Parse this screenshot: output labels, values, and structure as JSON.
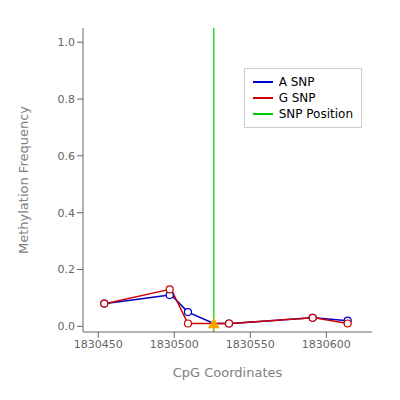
{
  "chart_data": {
    "type": "line",
    "xlabel": "CpG Coordinates",
    "ylabel": "Methylation Frequency",
    "xlim": [
      1830440,
      1830630
    ],
    "ylim": [
      -0.02,
      1.05
    ],
    "xticks": [
      1830450,
      1830500,
      1830550,
      1830600
    ],
    "yticks": [
      {
        "value": 0.0,
        "label": "0.0"
      },
      0.2,
      0.4,
      0.6,
      0.8,
      {
        "value": 1.0,
        "label": "1.0"
      }
    ],
    "grid": false,
    "legend": "upper right",
    "series": [
      {
        "name": "A SNP",
        "type": "line",
        "color": "#0000CC",
        "x": [
          1830454,
          1830455,
          1830497,
          1830498,
          1830509,
          1830526,
          1830536,
          1830537,
          1830591,
          1830592,
          1830614,
          1830615
        ],
        "values": [
          0.08,
          0.08,
          0.11,
          0.11,
          0.05,
          0.01,
          0.01,
          0.01,
          0.03,
          0.03,
          0.02,
          0.02
        ]
      },
      {
        "name": "G SNP",
        "type": "line",
        "color": "#CC0000",
        "x": [
          1830454,
          1830455,
          1830497,
          1830498,
          1830509,
          1830526,
          1830536,
          1830537,
          1830591,
          1830592,
          1830614,
          1830615
        ],
        "values": [
          0.08,
          0.08,
          0.13,
          0.13,
          0.01,
          0.01,
          0.01,
          0.01,
          0.03,
          0.03,
          0.01,
          0.01
        ]
      },
      {
        "name": "SNP Position",
        "type": "vline",
        "color": "#00CC00",
        "x": [
          1830526
        ]
      },
      {
        "type": "scatter",
        "marker": "circle",
        "color": "#0000CC",
        "x": [
          1830454,
          1830497,
          1830509,
          1830536,
          1830591,
          1830614
        ],
        "values": [
          0.08,
          0.11,
          0.05,
          0.01,
          0.03,
          0.02
        ]
      },
      {
        "type": "scatter",
        "marker": "circle",
        "color": "#CC0000",
        "x": [
          1830454,
          1830497,
          1830509,
          1830536,
          1830591,
          1830614
        ],
        "values": [
          0.08,
          0.13,
          0.01,
          0.01,
          0.03,
          0.01
        ]
      },
      {
        "type": "scatter",
        "marker": "triangle",
        "color": "#FFA500",
        "x": [
          1830526
        ],
        "values": [
          0.01
        ]
      }
    ]
  }
}
